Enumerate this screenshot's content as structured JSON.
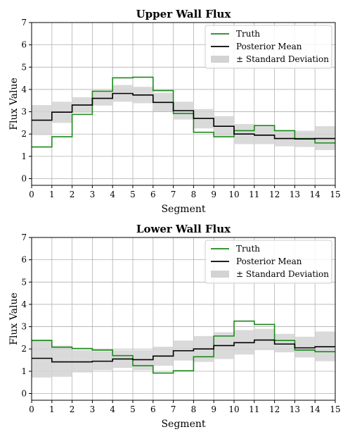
{
  "chart_data": [
    {
      "type": "line",
      "step": "post",
      "title": "Upper Wall Flux",
      "xlabel": "Segment",
      "ylabel": "Flux Value",
      "xlim": [
        0,
        15
      ],
      "ylim": [
        -0.3,
        7
      ],
      "xticks": [
        0,
        1,
        2,
        3,
        4,
        5,
        6,
        7,
        8,
        9,
        10,
        11,
        12,
        13,
        14,
        15
      ],
      "yticks": [
        0,
        1,
        2,
        3,
        4,
        5,
        6,
        7
      ],
      "grid": true,
      "legend_position": "top-right",
      "x": [
        0,
        1,
        2,
        3,
        4,
        5,
        6,
        7,
        8,
        9,
        10,
        11,
        12,
        13,
        14
      ],
      "series": [
        {
          "name": "Truth",
          "color": "#1a8a1a",
          "values": [
            1.42,
            1.88,
            2.88,
            3.92,
            4.52,
            4.55,
            3.95,
            2.92,
            2.08,
            1.88,
            2.15,
            2.38,
            2.15,
            1.8,
            1.6
          ]
        },
        {
          "name": "Posterior Mean",
          "color": "#000000",
          "values": [
            2.62,
            2.98,
            3.3,
            3.6,
            3.82,
            3.75,
            3.42,
            3.05,
            2.7,
            2.35,
            2.0,
            1.95,
            1.8,
            1.78,
            1.8
          ]
        }
      ],
      "band": {
        "name": "± Standard Deviation",
        "color": "#d3d3d3",
        "lower": [
          1.95,
          2.5,
          2.95,
          3.28,
          3.45,
          3.38,
          3.02,
          2.65,
          2.25,
          1.92,
          1.55,
          1.55,
          1.45,
          1.42,
          1.28
        ],
        "upper": [
          3.3,
          3.45,
          3.65,
          3.95,
          4.2,
          4.12,
          3.85,
          3.45,
          3.12,
          2.8,
          2.45,
          2.35,
          2.15,
          2.15,
          2.35
        ]
      }
    },
    {
      "type": "line",
      "step": "post",
      "title": "Lower Wall Flux",
      "xlabel": "Segment",
      "ylabel": "Flux Value",
      "xlim": [
        0,
        15
      ],
      "ylim": [
        -0.3,
        7
      ],
      "xticks": [
        0,
        1,
        2,
        3,
        4,
        5,
        6,
        7,
        8,
        9,
        10,
        11,
        12,
        13,
        14,
        15
      ],
      "yticks": [
        0,
        1,
        2,
        3,
        4,
        5,
        6,
        7
      ],
      "grid": true,
      "legend_position": "top-right",
      "x": [
        0,
        1,
        2,
        3,
        4,
        5,
        6,
        7,
        8,
        9,
        10,
        11,
        12,
        13,
        14
      ],
      "series": [
        {
          "name": "Truth",
          "color": "#1a8a1a",
          "values": [
            2.38,
            2.08,
            2.02,
            1.95,
            1.7,
            1.25,
            0.92,
            1.02,
            1.65,
            2.58,
            3.25,
            3.1,
            2.38,
            1.95,
            1.88
          ]
        },
        {
          "name": "Posterior Mean",
          "color": "#000000",
          "values": [
            1.58,
            1.42,
            1.42,
            1.45,
            1.55,
            1.52,
            1.68,
            1.92,
            2.0,
            2.15,
            2.28,
            2.4,
            2.22,
            2.05,
            2.1
          ]
        }
      ],
      "band": {
        "name": "± Standard Deviation",
        "color": "#d3d3d3",
        "lower": [
          0.72,
          0.75,
          0.95,
          1.05,
          1.15,
          1.05,
          1.25,
          1.48,
          1.42,
          1.55,
          1.75,
          1.95,
          1.85,
          1.62,
          1.45
        ],
        "upper": [
          2.42,
          2.15,
          1.95,
          1.9,
          1.95,
          1.95,
          2.1,
          2.38,
          2.58,
          2.75,
          2.85,
          2.9,
          2.68,
          2.55,
          2.78
        ]
      }
    }
  ]
}
